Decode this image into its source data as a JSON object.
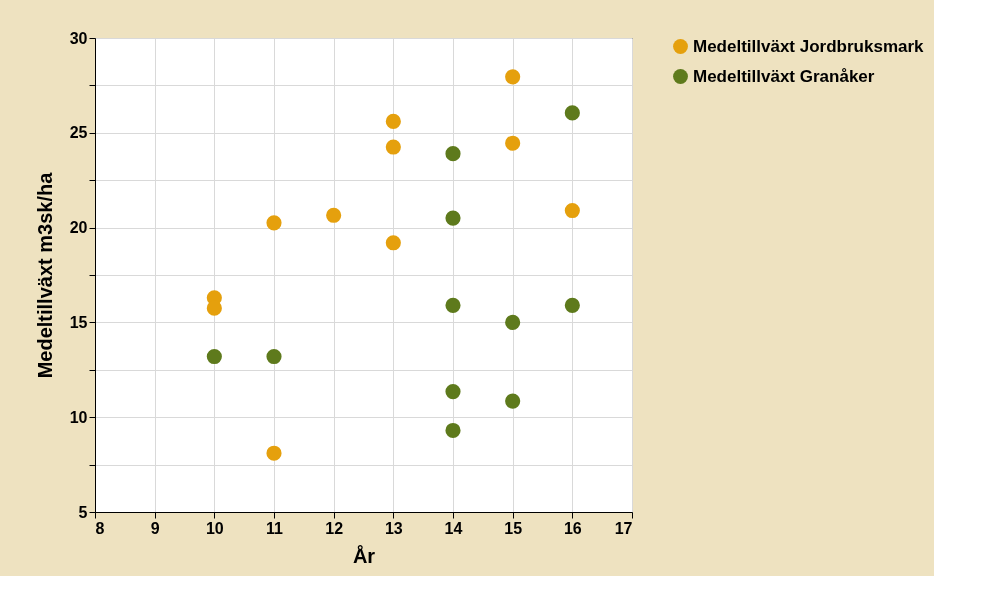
{
  "chart_data": {
    "type": "scatter",
    "xlabel": "År",
    "ylabel": "Medeltillväxt m3sk/ha",
    "xlim": [
      8,
      17
    ],
    "xticks": [
      8,
      9,
      10,
      11,
      12,
      13,
      14,
      15,
      16,
      17
    ],
    "ylim": [
      5,
      30
    ],
    "yticks": [
      5,
      {
        "value": 7.5,
        "label": null
      },
      10,
      {
        "value": 12.5,
        "label": null
      },
      15,
      {
        "value": 17.5,
        "label": null
      },
      20,
      {
        "value": 22.5,
        "label": null
      },
      25,
      {
        "value": 27.5,
        "label": null
      },
      30
    ],
    "grid": true,
    "legend": "right",
    "marker": "circle",
    "series": [
      {
        "name": "Medeltillväxt Jordbruksmark",
        "color": "#e5a00d",
        "x": [
          10,
          10,
          11,
          11,
          12,
          13,
          13,
          13,
          15,
          15,
          16
        ],
        "values": [
          16.3,
          15.75,
          20.25,
          8.1,
          20.65,
          25.6,
          24.25,
          19.2,
          27.95,
          24.45,
          20.9
        ]
      },
      {
        "name": "Medeltillväxt Granåker",
        "color": "#5e7a1c",
        "x": [
          10,
          11,
          14,
          14,
          14,
          14,
          14,
          15,
          15,
          16,
          16
        ],
        "values": [
          13.2,
          13.2,
          23.9,
          20.5,
          15.9,
          11.35,
          9.3,
          15.0,
          10.85,
          26.05,
          15.9
        ]
      }
    ]
  }
}
